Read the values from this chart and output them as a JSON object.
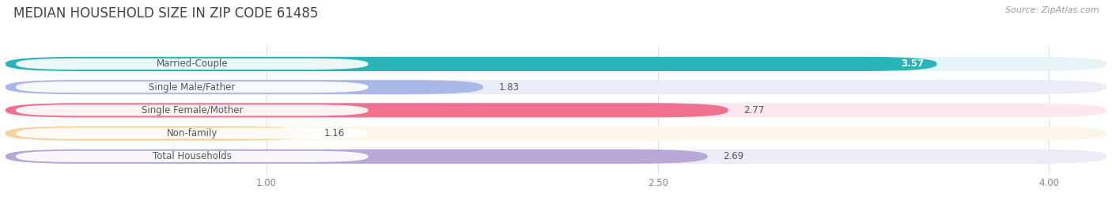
{
  "title": "MEDIAN HOUSEHOLD SIZE IN ZIP CODE 61485",
  "source": "Source: ZipAtlas.com",
  "categories": [
    "Married-Couple",
    "Single Male/Father",
    "Single Female/Mother",
    "Non-family",
    "Total Households"
  ],
  "values": [
    3.57,
    1.83,
    2.77,
    1.16,
    2.69
  ],
  "bar_colors": [
    "#29b5b8",
    "#aab8e8",
    "#f07090",
    "#f8d0a0",
    "#b8a8d8"
  ],
  "bar_bg_colors": [
    "#e5f5f6",
    "#eaecf8",
    "#fce8ee",
    "#fdf5ea",
    "#eeeaf8"
  ],
  "value_inside": [
    true,
    false,
    false,
    false,
    false
  ],
  "xlim": [
    0,
    4.22
  ],
  "xticks": [
    1.0,
    2.5,
    4.0
  ],
  "bar_height": 0.62,
  "label_fontsize": 8.5,
  "value_fontsize": 8.5,
  "title_fontsize": 12,
  "source_fontsize": 8,
  "background_color": "#ffffff",
  "grid_color": "#dddddd",
  "label_pill_color": "#ffffff",
  "text_color": "#555555"
}
